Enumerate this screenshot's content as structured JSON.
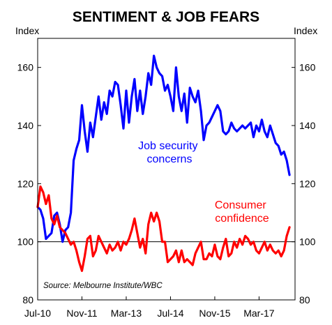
{
  "chart_data": {
    "type": "line",
    "title": "SENTIMENT & JOB FEARS",
    "left_axis_label": "Index",
    "right_axis_label": "Index",
    "ylim": [
      80,
      170
    ],
    "yticks": [
      80,
      100,
      120,
      140,
      160
    ],
    "x_tick_labels": [
      "Jul-10",
      "Nov-11",
      "Mar-13",
      "Jul-14",
      "Nov-15",
      "Mar-17"
    ],
    "x_tick_months": [
      "2010-07",
      "2011-11",
      "2013-03",
      "2014-07",
      "2015-11",
      "2017-03"
    ],
    "x_range": [
      "2010-07",
      "2018-04"
    ],
    "reference_line": 100,
    "grid": false,
    "legend": "none",
    "source": "Source: Melbourne Institute/WBC",
    "series": [
      {
        "name": "Job security concerns",
        "label_lines": [
          "Job security",
          "concerns"
        ],
        "color": "#0000ff",
        "start": "2010-07",
        "values": [
          112,
          111,
          108,
          101,
          102,
          103,
          109,
          110,
          106,
          100,
          104,
          105,
          110,
          128,
          132,
          135,
          147,
          138,
          131,
          141,
          136,
          143,
          150,
          142,
          148,
          144,
          152,
          150,
          155,
          154,
          147,
          139,
          152,
          141,
          150,
          156,
          145,
          152,
          144,
          150,
          158,
          154,
          164,
          160,
          158,
          157,
          152,
          154,
          150,
          145,
          160,
          150,
          145,
          151,
          141,
          153,
          150,
          148,
          152,
          145,
          135,
          140,
          141,
          143,
          145,
          147,
          145,
          138,
          137,
          138,
          141,
          139,
          138,
          139,
          140,
          139,
          140,
          141,
          136,
          140,
          138,
          142,
          138,
          136,
          140,
          137,
          134,
          133,
          130,
          131,
          128,
          123
        ]
      },
      {
        "name": "Consumer confidence",
        "label_lines": [
          "Consumer",
          "confidence"
        ],
        "color": "#ff0000",
        "start": "2010-07",
        "values": [
          112,
          119,
          117,
          113,
          116,
          108,
          106,
          109,
          105,
          104,
          103,
          101,
          99,
          100,
          97,
          93,
          90,
          95,
          101,
          102,
          95,
          97,
          102,
          100,
          98,
          96,
          99,
          97,
          98,
          100,
          97,
          100,
          99,
          101,
          104,
          108,
          103,
          98,
          101,
          96,
          106,
          110,
          107,
          110,
          107,
          100,
          100,
          93,
          94,
          95,
          97,
          93,
          97,
          93,
          94,
          93,
          92,
          96,
          98,
          100,
          94,
          94,
          96,
          95,
          99,
          95,
          94,
          98,
          101,
          95,
          96,
          100,
          98,
          101,
          99,
          102,
          101,
          99,
          100,
          97,
          96,
          98,
          100,
          97,
          99,
          97,
          96,
          97,
          95,
          97,
          102,
          105
        ]
      }
    ]
  }
}
